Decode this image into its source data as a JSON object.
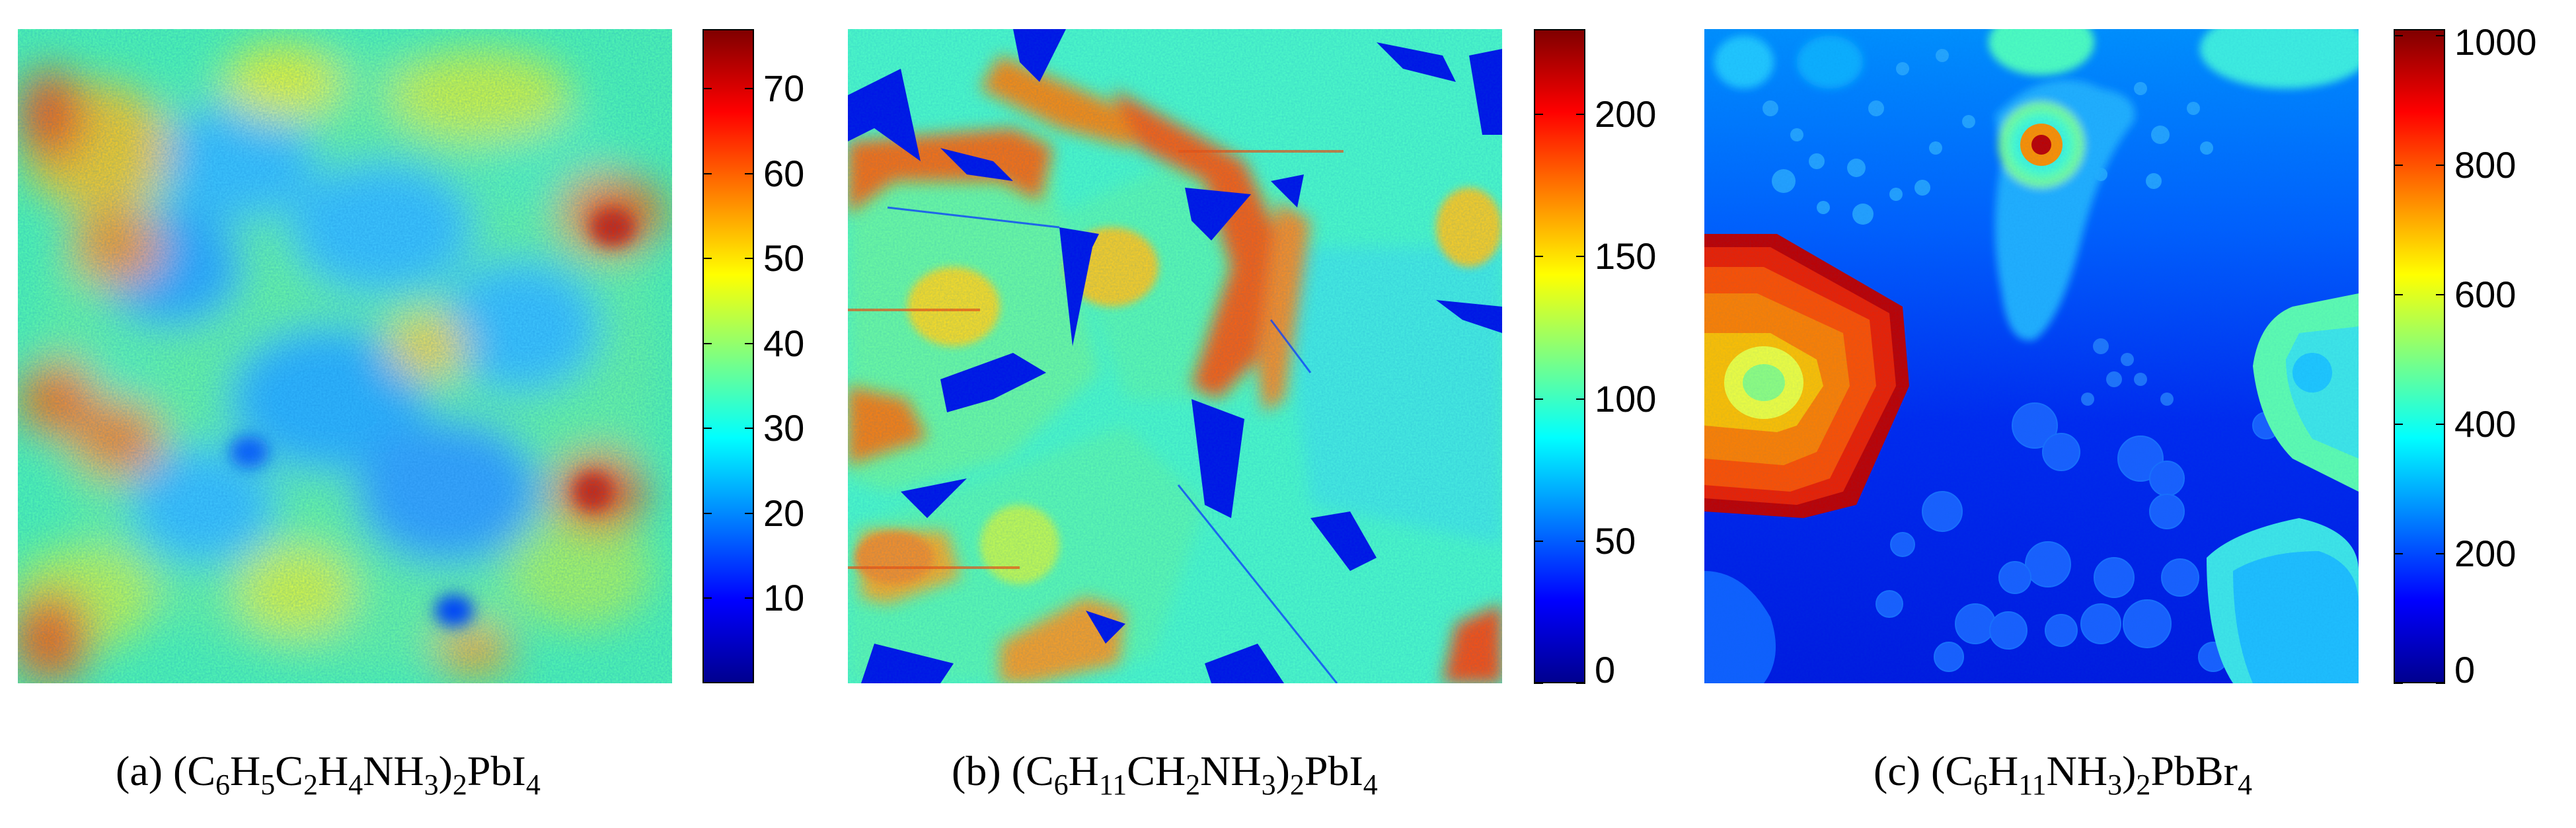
{
  "chart_data": [
    {
      "type": "heatmap",
      "caption": {
        "label": "(a)",
        "formula": [
          {
            "t": "(C"
          },
          {
            "s": "6"
          },
          {
            "t": "H"
          },
          {
            "s": "5"
          },
          {
            "t": "C"
          },
          {
            "s": "2"
          },
          {
            "t": "H"
          },
          {
            "s": "4"
          },
          {
            "t": "NH"
          },
          {
            "s": "3"
          },
          {
            "t": ")"
          },
          {
            "s": "2"
          },
          {
            "t": "PbI"
          },
          {
            "s": "4"
          }
        ]
      },
      "colormap": "jet",
      "clim": [
        0,
        77
      ],
      "colorbar_ticks": [
        "10",
        "20",
        "30",
        "40",
        "50",
        "60",
        "70"
      ],
      "colorbar_tick_values": [
        10,
        20,
        30,
        40,
        50,
        60,
        70
      ]
    },
    {
      "type": "heatmap",
      "caption": {
        "label": "(b)",
        "formula": [
          {
            "t": "(C"
          },
          {
            "s": "6"
          },
          {
            "t": "H"
          },
          {
            "s": "11"
          },
          {
            "t": "CH"
          },
          {
            "s": "2"
          },
          {
            "t": "NH"
          },
          {
            "s": "3"
          },
          {
            "t": ")"
          },
          {
            "s": "2"
          },
          {
            "t": "PbI"
          },
          {
            "s": "4"
          }
        ]
      },
      "colormap": "jet",
      "clim": [
        0,
        230
      ],
      "colorbar_ticks": [
        "0",
        "50",
        "100",
        "150",
        "200"
      ],
      "colorbar_tick_values": [
        0,
        50,
        100,
        150,
        200
      ]
    },
    {
      "type": "heatmap",
      "caption": {
        "label": "(c)",
        "formula": [
          {
            "t": "(C"
          },
          {
            "s": "6"
          },
          {
            "t": "H"
          },
          {
            "s": "11"
          },
          {
            "t": "NH"
          },
          {
            "s": "3"
          },
          {
            "t": ")"
          },
          {
            "s": "2"
          },
          {
            "t": "PbBr"
          },
          {
            "s": "4"
          }
        ]
      },
      "colormap": "jet",
      "clim": [
        0,
        1010
      ],
      "colorbar_ticks": [
        "0",
        "200",
        "400",
        "600",
        "800",
        "1000"
      ],
      "colorbar_tick_values": [
        0,
        200,
        400,
        600,
        800,
        1000
      ]
    }
  ]
}
